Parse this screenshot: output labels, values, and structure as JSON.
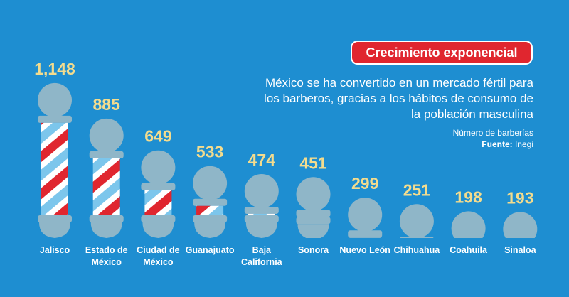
{
  "chart_data": {
    "type": "bar",
    "title": "Crecimiento exponencial",
    "subtitle": "México se ha convertido en un mercado fértil para los barberos, gracias a los hábitos de consumo de la población masculina",
    "note": "Número de barberías",
    "source": {
      "label": "Fuente:",
      "text": "Inegi"
    },
    "categories": [
      "Jalisco",
      "Estado de México",
      "Ciudad de México",
      "Guanajuato",
      "Baja California",
      "Sonora",
      "Nuevo León",
      "Chihuahua",
      "Coahuila",
      "Sinaloa"
    ],
    "values": [
      1148,
      885,
      649,
      533,
      474,
      451,
      299,
      251,
      198,
      193
    ],
    "value_labels": [
      "1,148",
      "885",
      "649",
      "533",
      "474",
      "451",
      "299",
      "251",
      "198",
      "193"
    ],
    "colors": {
      "stripe_red": "#e0262f",
      "stripe_blue": "#7cc6ec",
      "pole": "#8fb6c8",
      "value_label": "#f3dc8e"
    }
  }
}
